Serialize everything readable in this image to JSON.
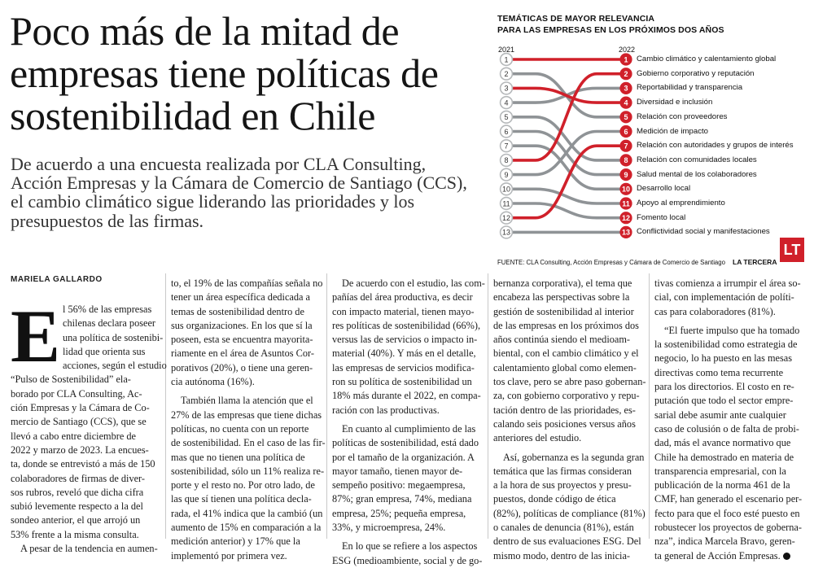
{
  "headline": {
    "lines": [
      "Poco más de la mitad de",
      "empresas tiene políticas de",
      "sostenibilidad en Chile"
    ]
  },
  "subhead": {
    "lines": [
      "De acuerdo a una encuesta realizada por CLA Consulting,",
      "Acción Empresas y la Cámara de Comercio de Santiago (CCS),",
      "el cambio climático sigue liderando las prioridades y los",
      "presupuestos de las firmas."
    ]
  },
  "byline": "MARIELA GALLARDO",
  "infographic": {
    "title_lines": [
      "TEMÁTICAS DE MAYOR RELEVANCIA",
      "PARA LAS EMPRESAS EN LOS PRÓXIMOS DOS AÑOS"
    ],
    "year_left": "2021",
    "year_right": "2022",
    "source": "FUENTE: CLA Consulting, Acción Empresas y Cámara de Comercio de Santiago",
    "brand": "LA TERCERA",
    "logo": "LT",
    "colors": {
      "highlight": "#d0202a",
      "neutral": "#8f9396",
      "bubble_ring": "#b5b8ba"
    }
  },
  "chart_data": {
    "type": "bump",
    "title": "TEMÁTICAS DE MAYOR RELEVANCIA PARA LAS EMPRESAS EN LOS PRÓXIMOS DOS AÑOS",
    "periods": [
      "2021",
      "2022"
    ],
    "rank_2021_labels": [
      "1",
      "2",
      "3",
      "4",
      "5",
      "6",
      "7",
      "8",
      "9",
      "10",
      "11",
      "12",
      "13"
    ],
    "rank_2022_labels": [
      "1",
      "2",
      "3",
      "4",
      "5",
      "6",
      "7",
      "8",
      "9",
      "10",
      "11",
      "12",
      "13"
    ],
    "items": [
      {
        "label": "Cambio climático y calentamiento global",
        "rank_2021": 1,
        "rank_2022": 1
      },
      {
        "label": "Gobierno corporativo y reputación",
        "rank_2021": 8,
        "rank_2022": 2
      },
      {
        "label": "Reportabilidad y transparencia",
        "rank_2021": 4,
        "rank_2022": 3
      },
      {
        "label": "Diversidad e inclusión",
        "rank_2021": 3,
        "rank_2022": 4
      },
      {
        "label": "Relación con proveedores",
        "rank_2021": 2,
        "rank_2022": 5
      },
      {
        "label": "Medición de impacto",
        "rank_2021": 9,
        "rank_2022": 6
      },
      {
        "label": "Relación con autoridades y grupos de interés",
        "rank_2021": 12,
        "rank_2022": 7
      },
      {
        "label": "Relación con comunidades locales",
        "rank_2021": 5,
        "rank_2022": 8
      },
      {
        "label": "Salud mental de los colaboradores",
        "rank_2021": 6,
        "rank_2022": 9
      },
      {
        "label": "Desarrollo local",
        "rank_2021": 7,
        "rank_2022": 10
      },
      {
        "label": "Apoyo al emprendimiento",
        "rank_2021": 10,
        "rank_2022": 11
      },
      {
        "label": "Fomento local",
        "rank_2021": 11,
        "rank_2022": 12
      },
      {
        "label": "Conflictividad social y manifestaciones",
        "rank_2021": 13,
        "rank_2022": 13
      }
    ],
    "highlighted": [
      1,
      2,
      4,
      7
    ]
  },
  "body": {
    "dropcap": "E",
    "col1": [
      "l 56% de las empresas",
      "chilenas declara poseer",
      "una política de sostenibi-",
      "lidad que orienta sus",
      "acciones, según el estudio",
      "“Pulso de Sostenibilidad” ela-",
      "borado por CLA Consulting, Ac-",
      "ción Empresas y la Cámara de Co-",
      "mercio de Santiago (CCS), que se",
      "llevó a cabo entre diciembre de",
      "2022 y marzo de 2023. La encues-",
      "ta, donde se entrevistó a más de 150",
      "colaboradores de firmas de diver-",
      "sos rubros, reveló que dicha cifra",
      "subió levemente respecto a la del",
      "sondeo anterior, el que arrojó un",
      "53% frente a la misma consulta.",
      "A pesar de la tendencia en aumen-"
    ],
    "col2a": [
      "to, el 19% de las compañías señala no",
      "tener un área específica dedicada a",
      "temas de sostenibilidad dentro de",
      "sus organizaciones. En los que sí la",
      "poseen, esta se encuentra mayorita-",
      "riamente en el área de Asuntos Cor-",
      "porativos (20%), o tiene una geren-",
      "cia autónoma (16%)."
    ],
    "col2b": [
      "También llama la atención que el",
      "27% de las empresas que tiene dichas",
      "políticas, no cuenta con un reporte",
      "de sostenibilidad. En el caso de las fir-",
      "mas que no tienen una política de",
      "sostenibilidad, sólo un 11% realiza re-",
      "porte y el resto no. Por otro lado, de",
      "las que sí tienen una política decla-",
      "rada, el 41% indica que la cambió (un",
      "aumento de 15% en comparación a la",
      "medición anterior) y 17% que la",
      "implementó por primera vez."
    ],
    "col3a": [
      "De acuerdo con el estudio, las com-",
      "pañías del área productiva, es decir",
      "con impacto material, tienen mayo-",
      "res políticas de sostenibilidad (66%),",
      "versus las de servicios o impacto in-",
      "material (40%). Y más en el detalle,",
      "las empresas de servicios modifica-",
      "ron su política de sostenibilidad un",
      "18% más durante el 2022, en compa-",
      "ración con las productivas."
    ],
    "col3b": [
      "En cuanto al cumplimiento de las",
      "políticas de sostenibilidad, está dado",
      "por el tamaño de la organización. A",
      "mayor tamaño, tienen mayor de-",
      "sempeño positivo: megaempresa,",
      "87%; gran empresa, 74%, mediana",
      "empresa, 25%; pequeña empresa,",
      "33%, y microempresa, 24%."
    ],
    "col3c": [
      "En lo que se refiere a los aspectos",
      "ESG (medioambiente, social y de go-"
    ],
    "col4a": [
      "bernanza corporativa), el tema que",
      "encabeza las perspectivas sobre la",
      "gestión de sostenibilidad al interior",
      "de las empresas en los próximos dos",
      "años continúa siendo el medioam-",
      "biental, con el cambio climático y el",
      "calentamiento global como elemen-",
      "tos clave, pero se abre paso gobernan-",
      "za, con gobierno corporativo y repu-",
      "tación dentro de las prioridades, es-",
      "calando seis posiciones versus años",
      "anteriores del estudio."
    ],
    "col4b": [
      "Así, gobernanza es la segunda gran",
      "temática que las firmas consideran",
      "a la hora de sus proyectos y presu-",
      "puestos, donde código de ética",
      "(82%), políticas de compliance (81%)",
      "o canales de denuncia (81%), están",
      "dentro de sus evaluaciones ESG. Del",
      "mismo modo, dentro de las inicia-"
    ],
    "col5a": [
      "tivas comienza a irrumpir el área so-",
      "cial, con implementación de políti-",
      "cas para colaboradores (81%)."
    ],
    "col5b": [
      "“El fuerte impulso que ha tomado",
      "la sostenibilidad como estrategia de",
      "negocio, lo ha puesto en las mesas",
      "directivas como tema recurrente",
      "para los directorios. El costo en re-",
      "putación que todo el sector empre-",
      "sarial debe asumir ante cualquier",
      "caso de colusión o de falta de probi-",
      "dad, más el avance normativo que",
      "Chile ha demostrado en materia de",
      "transparencia empresarial, con la",
      "publicación de la norma 461 de la",
      "CMF, han generado el escenario per-",
      "fecto para que el foco esté puesto en",
      "robustecer los proyectos de goberna-",
      "nza”, indica Marcela Bravo, geren-",
      "ta general de Acción Empresas."
    ]
  }
}
